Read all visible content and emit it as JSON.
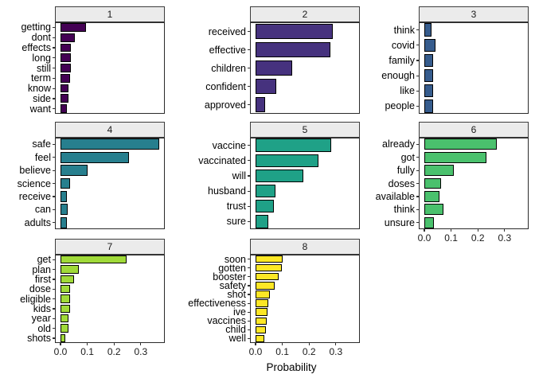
{
  "chart_data": {
    "type": "bar",
    "orientation": "horizontal",
    "title": "",
    "xlabel": "Probability",
    "ylabel": "",
    "xlim": [
      0,
      0.39
    ],
    "x_tick_labels": [
      "0.0",
      "0.1",
      "0.2",
      "0.3"
    ],
    "x_tick_values": [
      0.0,
      0.1,
      0.2,
      0.3
    ],
    "grid": false,
    "legend": "none",
    "strip_background": "#ebebeb",
    "facets": [
      {
        "label": "1",
        "color": "#440154",
        "row": 1,
        "col": 1,
        "x_axis": false,
        "bars": [
          {
            "word": "getting",
            "value": 0.095
          },
          {
            "word": "dont",
            "value": 0.053
          },
          {
            "word": "effects",
            "value": 0.039
          },
          {
            "word": "long",
            "value": 0.039
          },
          {
            "word": "still",
            "value": 0.039
          },
          {
            "word": "term",
            "value": 0.037
          },
          {
            "word": "know",
            "value": 0.029
          },
          {
            "word": "side",
            "value": 0.029
          },
          {
            "word": "want",
            "value": 0.023
          }
        ]
      },
      {
        "label": "2",
        "color": "#46327e",
        "row": 1,
        "col": 2,
        "x_axis": false,
        "bars": [
          {
            "word": "received",
            "value": 0.29
          },
          {
            "word": "effective",
            "value": 0.28
          },
          {
            "word": "children",
            "value": 0.137
          },
          {
            "word": "confident",
            "value": 0.076
          },
          {
            "word": "approved",
            "value": 0.036
          }
        ]
      },
      {
        "label": "3",
        "color": "#365c8d",
        "row": 1,
        "col": 3,
        "x_axis": false,
        "bars": [
          {
            "word": "think",
            "value": 0.026
          },
          {
            "word": "covid",
            "value": 0.041
          },
          {
            "word": "family",
            "value": 0.033
          },
          {
            "word": "enough",
            "value": 0.033
          },
          {
            "word": "like",
            "value": 0.033
          },
          {
            "word": "people",
            "value": 0.033
          }
        ]
      },
      {
        "label": "4",
        "color": "#277f8e",
        "row": 2,
        "col": 1,
        "x_axis": false,
        "bars": [
          {
            "word": "safe",
            "value": 0.37
          },
          {
            "word": "feel",
            "value": 0.257
          },
          {
            "word": "believe",
            "value": 0.101
          },
          {
            "word": "science",
            "value": 0.037
          },
          {
            "word": "receive",
            "value": 0.025
          },
          {
            "word": "can",
            "value": 0.028
          },
          {
            "word": "adults",
            "value": 0.023
          }
        ]
      },
      {
        "label": "5",
        "color": "#1fa187",
        "row": 2,
        "col": 2,
        "x_axis": false,
        "bars": [
          {
            "word": "vaccine",
            "value": 0.284
          },
          {
            "word": "vaccinated",
            "value": 0.236
          },
          {
            "word": "will",
            "value": 0.178
          },
          {
            "word": "husband",
            "value": 0.075
          },
          {
            "word": "trust",
            "value": 0.069
          },
          {
            "word": "sure",
            "value": 0.047
          }
        ]
      },
      {
        "label": "6",
        "color": "#4ac16d",
        "row": 2,
        "col": 3,
        "x_axis": true,
        "bars": [
          {
            "word": "already",
            "value": 0.272
          },
          {
            "word": "got",
            "value": 0.232
          },
          {
            "word": "fully",
            "value": 0.109
          },
          {
            "word": "doses",
            "value": 0.062
          },
          {
            "word": "available",
            "value": 0.056
          },
          {
            "word": "think",
            "value": 0.071
          },
          {
            "word": "unsure",
            "value": 0.035
          }
        ]
      },
      {
        "label": "7",
        "color": "#a0da39",
        "row": 3,
        "col": 1,
        "x_axis": true,
        "bars": [
          {
            "word": "get",
            "value": 0.248
          },
          {
            "word": "plan",
            "value": 0.067
          },
          {
            "word": "first",
            "value": 0.05
          },
          {
            "word": "dose",
            "value": 0.037
          },
          {
            "word": "eligible",
            "value": 0.035
          },
          {
            "word": "kids",
            "value": 0.035
          },
          {
            "word": "year",
            "value": 0.03
          },
          {
            "word": "old",
            "value": 0.03
          },
          {
            "word": "shots",
            "value": 0.019
          }
        ]
      },
      {
        "label": "8",
        "color": "#fde725",
        "row": 3,
        "col": 2,
        "x_axis": true,
        "bars": [
          {
            "word": "soon",
            "value": 0.1
          },
          {
            "word": "gotten",
            "value": 0.098
          },
          {
            "word": "booster",
            "value": 0.085
          },
          {
            "word": "safety",
            "value": 0.071
          },
          {
            "word": "shot",
            "value": 0.055
          },
          {
            "word": "effectiveness",
            "value": 0.048
          },
          {
            "word": "ive",
            "value": 0.045
          },
          {
            "word": "vaccines",
            "value": 0.043
          },
          {
            "word": "child",
            "value": 0.038
          },
          {
            "word": "well",
            "value": 0.033
          }
        ]
      }
    ]
  }
}
